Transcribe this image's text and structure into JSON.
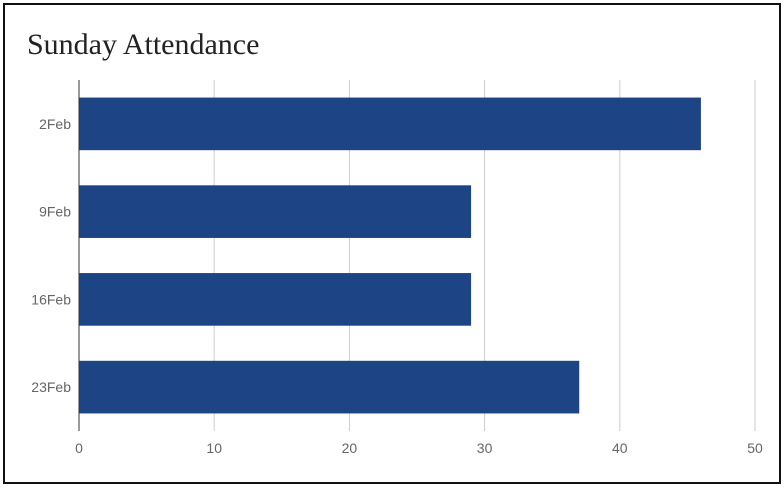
{
  "chart_data": {
    "type": "bar",
    "orientation": "horizontal",
    "title": "Sunday Attendance",
    "xlabel": "",
    "ylabel": "",
    "categories": [
      "2Feb",
      "9Feb",
      "16Feb",
      "23Feb"
    ],
    "values": [
      46,
      29,
      29,
      37
    ],
    "xlim": [
      0,
      50
    ],
    "xticks": [
      0,
      10,
      20,
      30,
      40,
      50
    ],
    "grid": "vertical",
    "legend": "none",
    "bar_color": "#1d4586"
  }
}
